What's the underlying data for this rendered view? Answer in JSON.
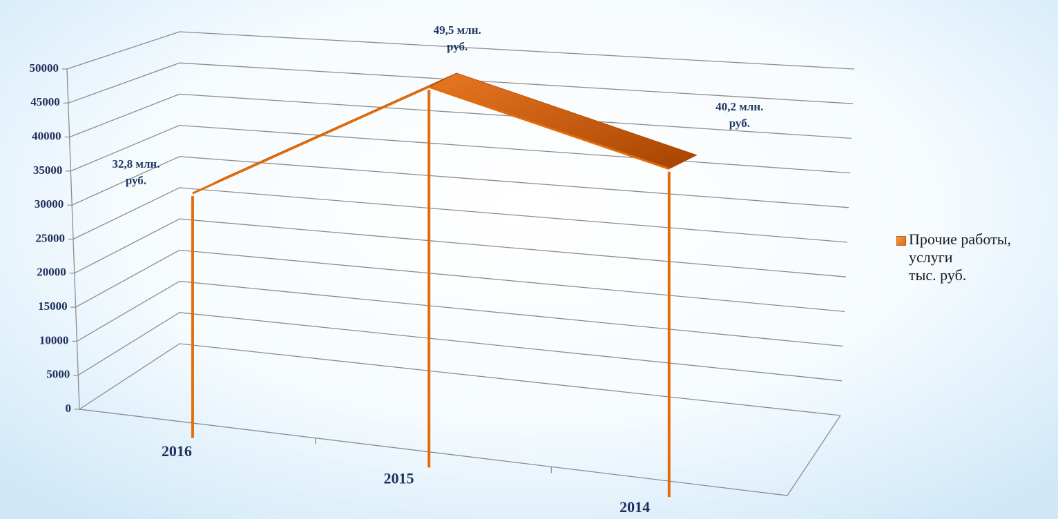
{
  "chart_data": {
    "type": "line3d",
    "categories": [
      "2016",
      "2015",
      "2014"
    ],
    "series": [
      {
        "name": "Прочие работы, услуги\nтыс. руб.",
        "color": "#e36c09",
        "values": [
          32800,
          49500,
          40200
        ],
        "value_labels": [
          "32,8 млн. руб.",
          "49,5 млн. руб.",
          "40,2 млн. руб."
        ]
      }
    ],
    "ylim": [
      0,
      50000
    ],
    "yticks": [
      0,
      5000,
      10000,
      15000,
      20000,
      25000,
      30000,
      35000,
      40000,
      45000,
      50000
    ],
    "grid": true,
    "legend": "right"
  }
}
